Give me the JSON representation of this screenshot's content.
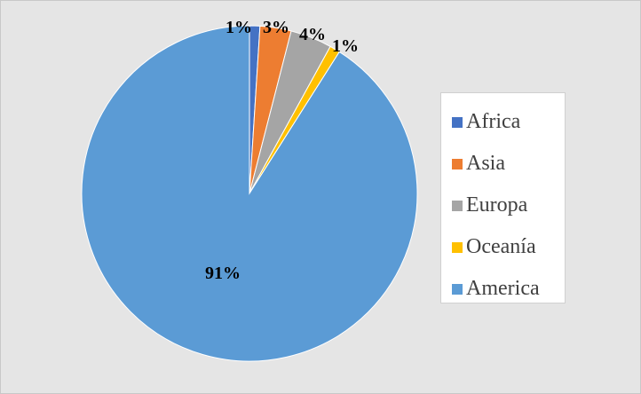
{
  "chart_data": {
    "type": "pie",
    "series": [
      {
        "values": [
          1,
          3,
          4,
          1,
          91
        ]
      }
    ],
    "categories": [
      "Africa",
      "Asia",
      "Europa",
      "Oceanía",
      "America"
    ],
    "values": [
      1,
      3,
      4,
      1,
      91
    ],
    "data_labels": [
      "1%",
      "3%",
      "4%",
      "1%",
      "91%"
    ],
    "colors": [
      "#4472c4",
      "#ed7d31",
      "#a5a5a5",
      "#ffc000",
      "#5b9bd5"
    ],
    "legend_position": "right",
    "start_angle": "12 o'clock, clockwise"
  }
}
